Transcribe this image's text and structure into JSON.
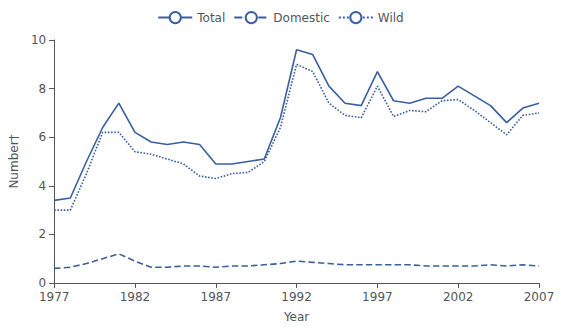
{
  "chart_data": {
    "type": "line",
    "x": [
      1977,
      1978,
      1979,
      1980,
      1981,
      1982,
      1983,
      1984,
      1985,
      1986,
      1987,
      1988,
      1989,
      1990,
      1991,
      1992,
      1993,
      1994,
      1995,
      1996,
      1997,
      1998,
      1999,
      2000,
      2001,
      2002,
      2003,
      2004,
      2005,
      2006,
      2007
    ],
    "series": [
      {
        "name": "Total",
        "color": "#3a5fa0",
        "line_style": "solid",
        "values": [
          3.4,
          3.5,
          5.0,
          6.4,
          7.4,
          6.2,
          5.8,
          5.7,
          5.8,
          5.7,
          4.9,
          4.9,
          5.0,
          5.1,
          6.8,
          9.6,
          9.4,
          8.1,
          7.4,
          7.3,
          8.7,
          7.5,
          7.4,
          7.6,
          7.6,
          8.1,
          7.7,
          7.3,
          6.6,
          7.2,
          7.4
        ]
      },
      {
        "name": "Domestic",
        "color": "#3a5fa0",
        "line_style": "dashed",
        "values": [
          0.6,
          0.65,
          0.8,
          1.0,
          1.2,
          0.9,
          0.65,
          0.65,
          0.7,
          0.7,
          0.65,
          0.7,
          0.7,
          0.75,
          0.8,
          0.9,
          0.85,
          0.8,
          0.75,
          0.75,
          0.75,
          0.75,
          0.75,
          0.7,
          0.7,
          0.7,
          0.7,
          0.75,
          0.7,
          0.75,
          0.7
        ]
      },
      {
        "name": "Wild",
        "color": "#3a5fa0",
        "line_style": "dotted",
        "values": [
          3.0,
          3.0,
          4.5,
          6.2,
          6.2,
          5.4,
          5.3,
          5.1,
          4.9,
          4.4,
          4.3,
          4.5,
          4.55,
          5.0,
          6.4,
          9.0,
          8.7,
          7.4,
          6.9,
          6.8,
          8.1,
          6.85,
          7.1,
          7.05,
          7.5,
          7.55,
          7.1,
          6.6,
          6.1,
          6.9,
          7.0
        ]
      }
    ],
    "xlim": [
      1977,
      2007
    ],
    "xticks": [
      1977,
      1982,
      1987,
      1992,
      1997,
      2002,
      2007
    ],
    "ylim": [
      0,
      10
    ],
    "yticks": [
      0,
      2,
      4,
      6,
      8,
      10
    ],
    "xlabel": "Year",
    "ylabel": "Number†",
    "grid": false,
    "legend": "top"
  }
}
